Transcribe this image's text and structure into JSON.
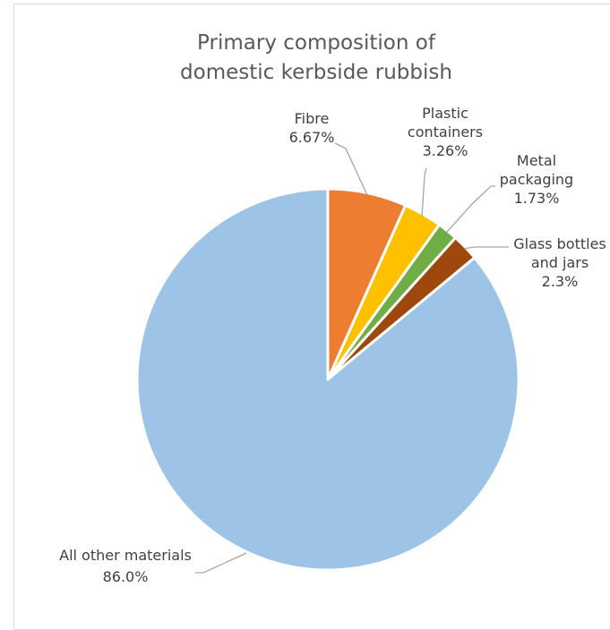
{
  "chart_data": {
    "type": "pie",
    "title_lines": [
      "Primary composition of",
      "domestic kerbside rubbish"
    ],
    "start_angle_deg": 0,
    "direction": "clockwise",
    "slices": [
      {
        "label_lines": [
          "Fibre"
        ],
        "value_text": "6.67%",
        "value": 6.67,
        "color": "#ED7D31"
      },
      {
        "label_lines": [
          "Plastic",
          "containers"
        ],
        "value_text": "3.26%",
        "value": 3.26,
        "color": "#FFC000"
      },
      {
        "label_lines": [
          "Metal",
          "packaging"
        ],
        "value_text": "1.73%",
        "value": 1.73,
        "color": "#70AD47"
      },
      {
        "label_lines": [
          "Glass bottles",
          "and jars"
        ],
        "value_text": "2.3%",
        "value": 2.3,
        "color": "#9E480E"
      },
      {
        "label_lines": [
          "All other materials"
        ],
        "value_text": "86.0%",
        "value": 86.0,
        "color": "#9DC3E6"
      }
    ],
    "legend": "none",
    "slice_border_color": "#FFFFFF",
    "leader_line_color": "#A6A6A6"
  }
}
